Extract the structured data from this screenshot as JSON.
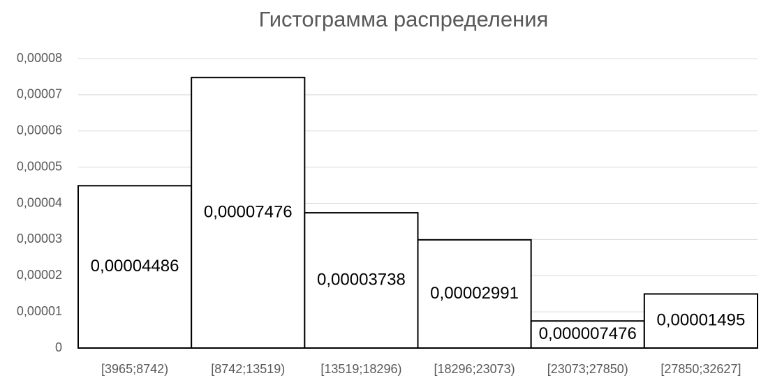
{
  "chart_data": {
    "type": "bar",
    "title": "Гистограмма распределения",
    "categories": [
      "[3965;8742)",
      "[8742;13519)",
      "[13519;18296)",
      "[18296;23073)",
      "[23073;27850)",
      "[27850;32627]"
    ],
    "values": [
      4.486e-05,
      7.476e-05,
      3.738e-05,
      2.991e-05,
      7.476e-06,
      1.495e-05
    ],
    "value_labels": [
      "0,00004486",
      "0,00007476",
      "0,00003738",
      "0,00002991",
      "0,000007476",
      "0,00001495"
    ],
    "color": "#ffffff",
    "ylim": [
      0,
      8e-05
    ],
    "yticks": [
      0,
      {
        "value": 1e-05,
        "label": "0,00001"
      },
      {
        "value": 2e-05,
        "label": "0,00002"
      },
      {
        "value": 3e-05,
        "label": "0,00003"
      },
      {
        "value": 4e-05,
        "label": "0,00004"
      },
      {
        "value": 5e-05,
        "label": "0,00005"
      },
      {
        "value": 6e-05,
        "label": "0,00006"
      },
      {
        "value": 7e-05,
        "label": "0,00007"
      },
      {
        "value": 8e-05,
        "label": "0,00008"
      }
    ],
    "grid": true
  }
}
